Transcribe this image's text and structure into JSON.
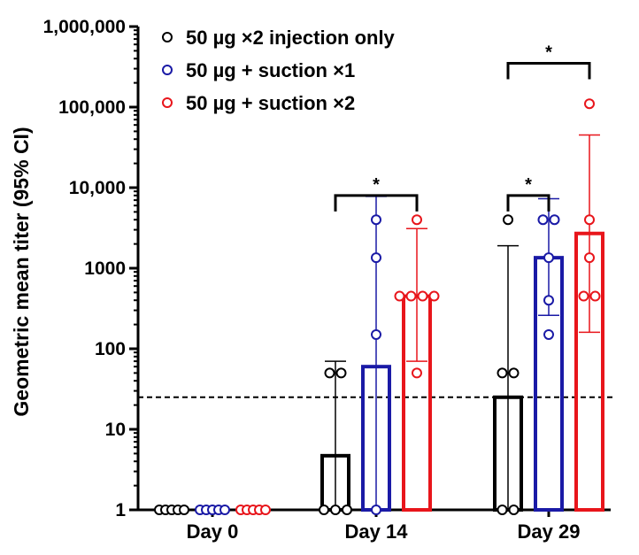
{
  "chart_data": {
    "type": "bar",
    "ylabel": "Geometric mean titer (95% CI)",
    "yscale": "log",
    "ylim": [
      1,
      1000000
    ],
    "yticks": [
      {
        "value": 1,
        "label": "1"
      },
      {
        "value": 10,
        "label": "10"
      },
      {
        "value": 100,
        "label": "100"
      },
      {
        "value": 1000,
        "label": "1000"
      },
      {
        "value": 10000,
        "label": "10,000"
      },
      {
        "value": 100000,
        "label": "100,000"
      },
      {
        "value": 1000000,
        "label": "1,000,000"
      }
    ],
    "categories": [
      "Day 0",
      "Day 14",
      "Day 29"
    ],
    "threshold": 25,
    "legend_position": "top-left",
    "series": [
      {
        "name": "50 µg ×2 injection only",
        "color": "#000000",
        "values": [
          1,
          4.7,
          25
        ],
        "ci": [
          [
            1,
            1
          ],
          [
            1,
            70
          ],
          [
            1,
            1900
          ]
        ],
        "points": [
          [
            1,
            1,
            1,
            1,
            1
          ],
          [
            1,
            1,
            1,
            50,
            50
          ],
          [
            1,
            1,
            50,
            50,
            4000
          ]
        ]
      },
      {
        "name": "50 µg + suction ×1",
        "color": "#1a1aa6",
        "values": [
          1,
          60,
          1350
        ],
        "ci": [
          [
            1,
            1
          ],
          [
            1,
            7800
          ],
          [
            260,
            7300
          ]
        ],
        "points": [
          [
            1,
            1,
            1,
            1,
            1
          ],
          [
            1,
            150,
            1350,
            4000
          ],
          [
            150,
            400,
            1350,
            4000,
            4000
          ]
        ]
      },
      {
        "name": "50 µg + suction ×2",
        "color": "#e8151b",
        "values": [
          1,
          450,
          2700
        ],
        "ci": [
          [
            1,
            1
          ],
          [
            70,
            3100
          ],
          [
            160,
            45000
          ]
        ],
        "points": [
          [
            1,
            1,
            1,
            1,
            1
          ],
          [
            50,
            450,
            450,
            450,
            450,
            4000
          ],
          [
            450,
            450,
            1350,
            4000,
            110000
          ]
        ]
      }
    ],
    "significance": [
      {
        "category": 1,
        "from": 0,
        "to": 2,
        "y": 8000,
        "label": "*"
      },
      {
        "category": 2,
        "from": 0,
        "to": 1,
        "y": 8000,
        "label": "*"
      },
      {
        "category": 2,
        "from": 0,
        "to": 2,
        "y": 350000,
        "label": "*"
      }
    ]
  }
}
